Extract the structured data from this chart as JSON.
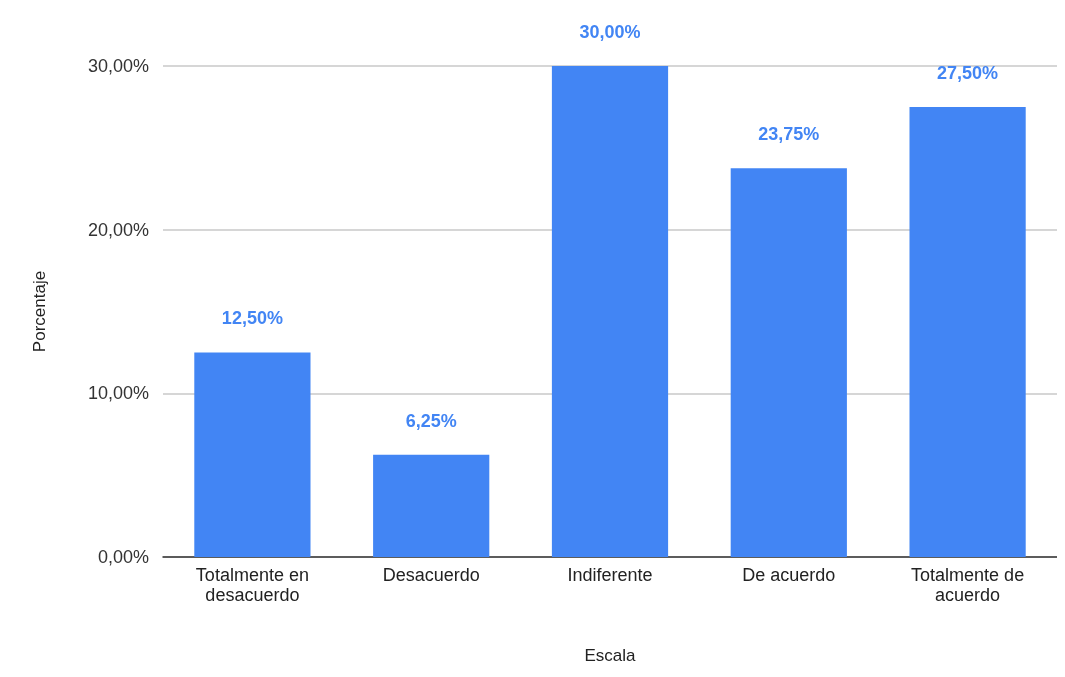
{
  "chart_data": {
    "type": "bar",
    "xlabel": "Escala",
    "ylabel": "Porcentaje",
    "categories": [
      "Totalmente en\ndesacuerdo",
      "Desacuerdo",
      "Indiferente",
      "De acuerdo",
      "Totalmente de\nacuerdo"
    ],
    "values": [
      12.5,
      6.25,
      30,
      23.75,
      27.5
    ],
    "value_labels": [
      "12,50%",
      "6,25%",
      "30,00%",
      "23,75%",
      "27,50%"
    ],
    "color": "#4285f4",
    "ylim": [
      0,
      30
    ],
    "yticks": [
      {
        "value": 0,
        "label": "0,00%"
      },
      {
        "value": 10,
        "label": "10,00%"
      },
      {
        "value": 20,
        "label": "20,00%"
      },
      {
        "value": 30,
        "label": "30,00%"
      }
    ],
    "grid": "y"
  }
}
